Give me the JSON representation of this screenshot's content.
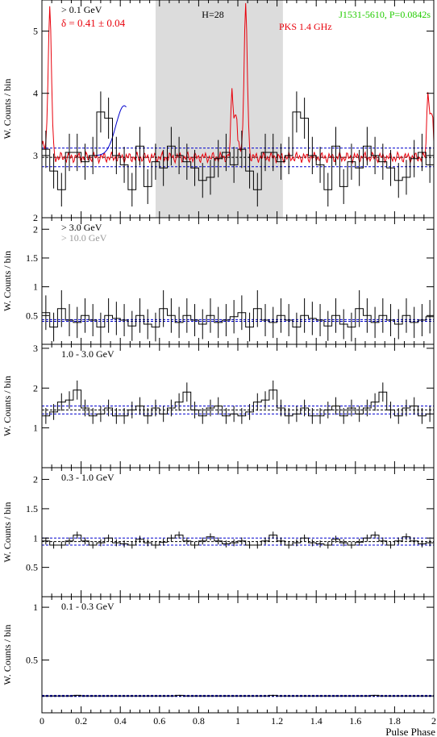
{
  "figure": {
    "xlabel": "Pulse Phase",
    "ylabel": "W. Counts / bin",
    "xticks": [
      "0",
      "0.2",
      "0.4",
      "0.6",
      "0.8",
      "1",
      "1.2",
      "1.4",
      "1.6",
      "1.8",
      "2"
    ]
  },
  "colors": {
    "hist": "#000000",
    "radio": "#e8000b",
    "bkg": "#0000cc",
    "name": "#22cc00",
    "delta": "#e8000b",
    "band": "#dcdcdc",
    "gray": "#999999"
  },
  "chart_data": [
    {
      "type": "bar",
      "panel": "top",
      "labels": {
        "energy": "> 0.1 GeV",
        "delta": "δ = 0.41 ± 0.04",
        "htest": "H=28",
        "psr": "J1531-5610, P=0.0842s",
        "radio": "PKS 1.4 GHz"
      },
      "xlim": [
        0,
        2
      ],
      "ylim": [
        2,
        5.5
      ],
      "yticks": [
        "2",
        "3",
        "4",
        "5"
      ],
      "onpulse_band": [
        0.58,
        1.23
      ],
      "background": [
        2.82,
        2.97,
        3.12
      ],
      "bins": 25,
      "values": [
        3.1,
        2.75,
        2.45,
        3.05,
        3.05,
        2.9,
        3.0,
        3.7,
        3.6,
        3.0,
        2.85,
        2.45,
        3.15,
        2.5,
        2.9,
        2.8,
        3.15,
        3.0,
        2.9,
        2.8,
        2.6,
        2.65,
        2.95,
        3.05,
        2.85
      ],
      "errors": [
        0.3,
        0.28,
        0.27,
        0.3,
        0.3,
        0.29,
        0.3,
        0.33,
        0.33,
        0.3,
        0.29,
        0.27,
        0.31,
        0.28,
        0.29,
        0.29,
        0.31,
        0.3,
        0.29,
        0.29,
        0.28,
        0.28,
        0.3,
        0.3,
        0.29
      ]
    },
    {
      "type": "bar",
      "panel": "p2",
      "labels": {
        "energy": "> 3.0 GeV",
        "energy2": "> 10.0 GeV"
      },
      "xlim": [
        0,
        2
      ],
      "ylim": [
        0,
        2.2
      ],
      "yticks": [
        "0.5",
        "1",
        "1.5",
        "2"
      ],
      "background": [
        0.4,
        0.43
      ],
      "bins": 25,
      "values": [
        0.55,
        0.3,
        0.62,
        0.42,
        0.38,
        0.5,
        0.42,
        0.3,
        0.5,
        0.45,
        0.42,
        0.32,
        0.5,
        0.35,
        0.3,
        0.62,
        0.5,
        0.38,
        0.5,
        0.42,
        0.35,
        0.5,
        0.38,
        0.42,
        0.48
      ],
      "errors": [
        0.3,
        0.25,
        0.32,
        0.28,
        0.27,
        0.3,
        0.28,
        0.25,
        0.3,
        0.29,
        0.28,
        0.26,
        0.3,
        0.26,
        0.25,
        0.32,
        0.3,
        0.27,
        0.3,
        0.28,
        0.26,
        0.3,
        0.27,
        0.28,
        0.29
      ]
    },
    {
      "type": "bar",
      "panel": "p3",
      "labels": {
        "energy": "1.0 - 3.0 GeV"
      },
      "xlim": [
        0,
        2
      ],
      "ylim": [
        0,
        3.1
      ],
      "yticks": [
        "1",
        "2",
        "3"
      ],
      "background": [
        1.35,
        1.45,
        1.55
      ],
      "bins": 25,
      "values": [
        1.3,
        1.4,
        1.65,
        1.7,
        1.95,
        1.5,
        1.3,
        1.35,
        1.5,
        1.3,
        1.3,
        1.45,
        1.55,
        1.3,
        1.5,
        1.35,
        1.5,
        1.65,
        1.9,
        1.45,
        1.3,
        1.5,
        1.55,
        1.3,
        1.35
      ],
      "errors": [
        0.2,
        0.2,
        0.22,
        0.22,
        0.24,
        0.21,
        0.2,
        0.2,
        0.21,
        0.2,
        0.2,
        0.21,
        0.22,
        0.2,
        0.21,
        0.2,
        0.21,
        0.22,
        0.24,
        0.21,
        0.2,
        0.21,
        0.22,
        0.2,
        0.2
      ]
    },
    {
      "type": "bar",
      "panel": "p4",
      "labels": {
        "energy": "0.3 - 1.0 GeV"
      },
      "xlim": [
        0,
        2
      ],
      "ylim": [
        0,
        2.2
      ],
      "yticks": [
        "0.5",
        "1",
        "1.5",
        "2"
      ],
      "background": [
        0.88,
        0.94,
        1.0
      ],
      "bins": 25,
      "values": [
        0.95,
        0.88,
        0.88,
        0.95,
        1.05,
        0.95,
        0.88,
        0.92,
        1.0,
        0.92,
        0.9,
        0.88,
        0.98,
        0.92,
        0.88,
        0.93,
        1.0,
        1.05,
        0.95,
        0.88,
        0.95,
        1.02,
        0.95,
        0.9,
        0.92
      ],
      "errors": [
        0.06,
        0.06,
        0.06,
        0.06,
        0.06,
        0.06,
        0.06,
        0.06,
        0.06,
        0.06,
        0.06,
        0.06,
        0.06,
        0.06,
        0.06,
        0.06,
        0.06,
        0.06,
        0.06,
        0.06,
        0.06,
        0.06,
        0.06,
        0.06,
        0.06
      ]
    },
    {
      "type": "bar",
      "panel": "p5",
      "labels": {
        "energy": "0.1 - 0.3 GeV"
      },
      "xlim": [
        0,
        2
      ],
      "ylim": [
        0,
        1.1
      ],
      "yticks": [
        "0.5",
        "1"
      ],
      "background": [
        0.155,
        0.16,
        0.165
      ],
      "bins": 25,
      "values": [
        0.16,
        0.16,
        0.16,
        0.16,
        0.165,
        0.16,
        0.16,
        0.16,
        0.16,
        0.16,
        0.16,
        0.16,
        0.16,
        0.16,
        0.16,
        0.16,
        0.16,
        0.165,
        0.16,
        0.16,
        0.16,
        0.16,
        0.16,
        0.16,
        0.16
      ],
      "errors": [
        0.005,
        0.005,
        0.005,
        0.005,
        0.005,
        0.005,
        0.005,
        0.005,
        0.005,
        0.005,
        0.005,
        0.005,
        0.005,
        0.005,
        0.005,
        0.005,
        0.005,
        0.005,
        0.005,
        0.005,
        0.005,
        0.005,
        0.005,
        0.005,
        0.005
      ]
    }
  ]
}
